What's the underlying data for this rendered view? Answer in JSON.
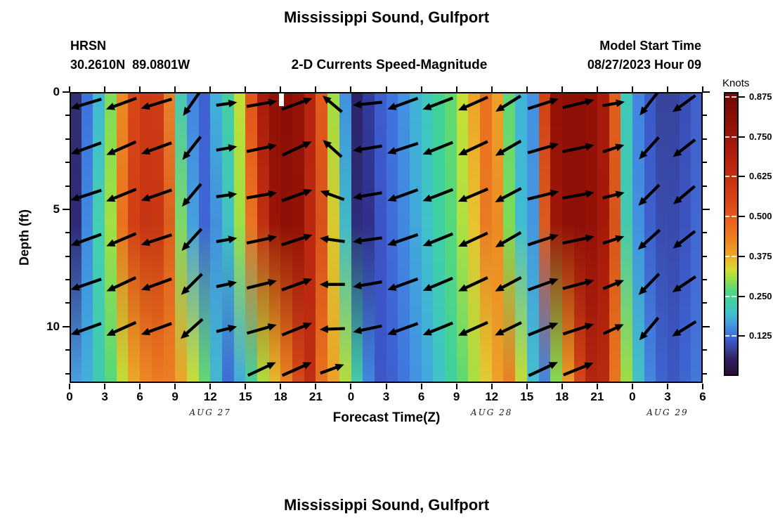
{
  "figure": {
    "title": "Mississippi Sound, Gulfport",
    "station": {
      "name": "HRSN",
      "coords": "30.2610N  89.0801W"
    },
    "plot_title": "2-D Currents Speed-Magnitude",
    "model_start": {
      "label": "Model Start Time",
      "value": "08/27/2023 Hour 09"
    },
    "xlabel": "Forecast Time(Z)",
    "ylabel": "Depth (ft)",
    "x_ticks": [
      "0",
      "3",
      "6",
      "9",
      "12",
      "15",
      "18",
      "21",
      "0",
      "3",
      "6",
      "9",
      "12",
      "15",
      "18",
      "21",
      "0",
      "3",
      "6"
    ],
    "y_ticks": [
      "0",
      "5",
      "10"
    ],
    "date_labels": [
      {
        "text": "AUG 27",
        "center_hour": 12
      },
      {
        "text": "AUG 28",
        "center_hour": 36
      },
      {
        "text": "AUG 29",
        "center_hour": 51
      }
    ],
    "colorbar": {
      "label": "Knots",
      "tick_labels": [
        "0.875",
        "0.750",
        "0.625",
        "0.500",
        "0.375",
        "0.250",
        "0.125"
      ]
    }
  },
  "second_figure": {
    "title": "Mississippi Sound, Gulfport"
  },
  "chart_data": {
    "type": "heatmap",
    "title": "Mississippi Sound, Gulfport",
    "subtitle": "2-D Currents Speed-Magnitude",
    "station_id": "HRSN",
    "location": "30.2610N 89.0801W",
    "model_start_time": "08/27/2023 Hour 09",
    "x_axis": {
      "label": "Forecast Time(Z)",
      "unit": "hours",
      "span_hours": 54,
      "tick_hours": [
        0,
        3,
        6,
        9,
        12,
        15,
        18,
        21,
        24,
        27,
        30,
        33,
        36,
        39,
        42,
        45,
        48,
        51,
        54
      ],
      "tick_labels": [
        "0",
        "3",
        "6",
        "9",
        "12",
        "15",
        "18",
        "21",
        "0",
        "3",
        "6",
        "9",
        "12",
        "15",
        "18",
        "21",
        "0",
        "3",
        "6"
      ],
      "day_labels": [
        "AUG 27",
        "AUG 28",
        "AUG 29"
      ]
    },
    "y_axis": {
      "label": "Depth (ft)",
      "range": [
        0,
        12.4
      ],
      "major_ticks": [
        0,
        5,
        10
      ],
      "minor_tick_step": 1
    },
    "colorbar": {
      "label": "Knots",
      "vmin": 0.0,
      "vmax": 0.89,
      "tick_values": [
        0.875,
        0.75,
        0.625,
        0.5,
        0.375,
        0.25,
        0.125
      ],
      "gradient_stops": [
        [
          0,
          "#6e0a04"
        ],
        [
          8,
          "#871006"
        ],
        [
          18,
          "#a4180a"
        ],
        [
          28,
          "#c02a10"
        ],
        [
          38,
          "#d94417"
        ],
        [
          46,
          "#e8641e"
        ],
        [
          52,
          "#ec8222"
        ],
        [
          57,
          "#eda127"
        ],
        [
          60,
          "#e9be2d"
        ],
        [
          63,
          "#cede33"
        ],
        [
          66,
          "#9ade47"
        ],
        [
          70,
          "#55d77b"
        ],
        [
          74,
          "#3fd0a2"
        ],
        [
          78,
          "#3fc2c9"
        ],
        [
          82,
          "#429ade"
        ],
        [
          86,
          "#3f70d8"
        ],
        [
          88,
          "#3c57cc"
        ],
        [
          91,
          "#394093"
        ],
        [
          95,
          "#2f1d5c"
        ],
        [
          100,
          "#2a0e38"
        ]
      ]
    },
    "columns_note": "hourly speed-magnitude color columns [surface, mid-depth, bottom]",
    "columns": [
      [
        "#32306f",
        "#2f2a78",
        "#4b9fe2"
      ],
      [
        "#3f70dd",
        "#3f8ae0",
        "#41b0da"
      ],
      [
        "#40b8d4",
        "#44cfb0",
        "#3fc9b0"
      ],
      [
        "#7edb58",
        "#a2df42",
        "#55d77a"
      ],
      [
        "#eb8a23",
        "#e9701f",
        "#c2dd37"
      ],
      [
        "#d84619",
        "#d23f16",
        "#eca827"
      ],
      [
        "#cc3a15",
        "#c63513",
        "#ed8823"
      ],
      [
        "#ce3c16",
        "#c83712",
        "#ec7b21"
      ],
      [
        "#e8812a",
        "#dd5f1e",
        "#ec7e22"
      ],
      [
        "#45c8b4",
        "#7cd766",
        "#eda427"
      ],
      [
        "#4484e0",
        "#44a0dc",
        "#cadd34"
      ],
      [
        "#3f62d2",
        "#3f66d4",
        "#63d873"
      ],
      [
        "#41b2d8",
        "#4290dc",
        "#44b8d0"
      ],
      [
        "#44cfa0",
        "#40c2c2",
        "#3f6cd6"
      ],
      [
        "#c2de36",
        "#9cdf46",
        "#42aadd"
      ],
      [
        "#e25318",
        "#eb7220",
        "#45cf9d"
      ],
      [
        "#a81a0a",
        "#c23012",
        "#b0dc3e"
      ],
      [
        "#901106",
        "#9a1408",
        "#e9b82b"
      ],
      [
        "#8c0f06",
        "#8e1006",
        "#ec8222"
      ],
      [
        "#951207",
        "#941107",
        "#d8491a"
      ],
      [
        "#b72511",
        "#bb2810",
        "#bf2d12"
      ],
      [
        "#e05a1d",
        "#d8511a",
        "#e8701f"
      ],
      [
        "#9ddf44",
        "#d8c92f",
        "#eca027"
      ],
      [
        "#4190e0",
        "#42b8c8",
        "#b2dc3c"
      ],
      [
        "#2d2467",
        "#2e2c7c",
        "#44ccab"
      ],
      [
        "#323c9c",
        "#30308a",
        "#4188e2"
      ],
      [
        "#3e5ece",
        "#3c54c4",
        "#3b57c8"
      ],
      [
        "#3f74dc",
        "#3f6ed8",
        "#3e60d0"
      ],
      [
        "#4292e2",
        "#4288e0",
        "#4077de"
      ],
      [
        "#3fb4d4",
        "#40a8da",
        "#4292e2"
      ],
      [
        "#3ec8bb",
        "#3fc2c8",
        "#41a8dd"
      ],
      [
        "#3fd395",
        "#3fd0a2",
        "#3fc2c9"
      ],
      [
        "#63d96e",
        "#55d87c",
        "#3fd09e"
      ],
      [
        "#c6df35",
        "#ade043",
        "#5ed873"
      ],
      [
        "#eda127",
        "#e7c32f",
        "#a8df42"
      ],
      [
        "#e96f1f",
        "#ea7a21",
        "#e2cc31"
      ],
      [
        "#eca127",
        "#eb8b23",
        "#eda027"
      ],
      [
        "#5cd877",
        "#7fdb55",
        "#ec7f22"
      ],
      [
        "#40b4d8",
        "#40bcd2",
        "#c2dc36"
      ],
      [
        "#4590e1",
        "#4496e0",
        "#44c0cc"
      ],
      [
        "#d04018",
        "#dc5a1c",
        "#4285e0"
      ],
      [
        "#941107",
        "#9e1608",
        "#86db52"
      ],
      [
        "#8d0f06",
        "#8f1006",
        "#eb9b26"
      ],
      [
        "#8d0f06",
        "#8d0f06",
        "#d64718"
      ],
      [
        "#951107",
        "#931107",
        "#b52511"
      ],
      [
        "#a81a0a",
        "#a51908",
        "#b82a10"
      ],
      [
        "#e1601d",
        "#d8531a",
        "#e8761f"
      ],
      [
        "#3fc9b8",
        "#44c8b0",
        "#a0dc44"
      ],
      [
        "#4384e0",
        "#4290e0",
        "#42c2c6"
      ],
      [
        "#3c5ac9",
        "#3e60cc",
        "#4486e0"
      ],
      [
        "#384499",
        "#3a4cae",
        "#3e64d0"
      ],
      [
        "#38449e",
        "#394aae",
        "#3c58c4"
      ],
      [
        "#3b4eb6",
        "#3c54c0",
        "#3f66d2"
      ],
      [
        "#4160cc",
        "#4268d2",
        "#4478da"
      ]
    ],
    "missing_gap": {
      "hour": 17.85,
      "width_hours": 0.45,
      "depth_ft": 0,
      "height_ft": 0.55
    },
    "arrows": {
      "note": "current direction vectors; angle deg CCW from east, null = no arrow",
      "rows_depth_ft": [
        0.5,
        2.4,
        4.4,
        6.3,
        8.2,
        10.1,
        11.8
      ],
      "cols_hour": [
        1.4,
        4.4,
        7.4,
        10.4,
        13.4,
        16.4,
        19.4,
        22.4,
        25.4,
        28.4,
        31.4,
        34.4,
        37.4,
        40.4,
        43.4,
        46.4,
        49.4,
        52.4
      ],
      "lengths": [
        46,
        46,
        46,
        42,
        30,
        44,
        46,
        36,
        42,
        46,
        46,
        46,
        42,
        46,
        46,
        32,
        42,
        40
      ],
      "angles": [
        [
          197,
          200,
          197,
          235,
          8,
          10,
          20,
          140,
          186,
          200,
          201,
          204,
          212,
          18,
          14,
          10,
          232,
          216
        ],
        [
          200,
          204,
          200,
          232,
          10,
          12,
          25,
          138,
          189,
          198,
          202,
          205,
          210,
          16,
          12,
          18,
          228,
          218
        ],
        [
          198,
          202,
          199,
          230,
          8,
          10,
          20,
          160,
          190,
          200,
          201,
          203,
          208,
          14,
          10,
          14,
          225,
          220
        ],
        [
          200,
          203,
          198,
          228,
          10,
          12,
          18,
          172,
          188,
          199,
          202,
          205,
          210,
          18,
          12,
          18,
          222,
          218
        ],
        [
          199,
          205,
          200,
          225,
          12,
          14,
          20,
          180,
          190,
          200,
          203,
          205,
          208,
          20,
          15,
          22,
          226,
          214
        ],
        [
          200,
          204,
          200,
          222,
          14,
          16,
          22,
          182,
          192,
          200,
          202,
          204,
          206,
          22,
          18,
          25,
          230,
          212
        ],
        [
          null,
          null,
          null,
          null,
          null,
          25,
          24,
          20,
          null,
          null,
          null,
          null,
          null,
          25,
          22,
          null,
          null,
          null
        ]
      ]
    }
  }
}
